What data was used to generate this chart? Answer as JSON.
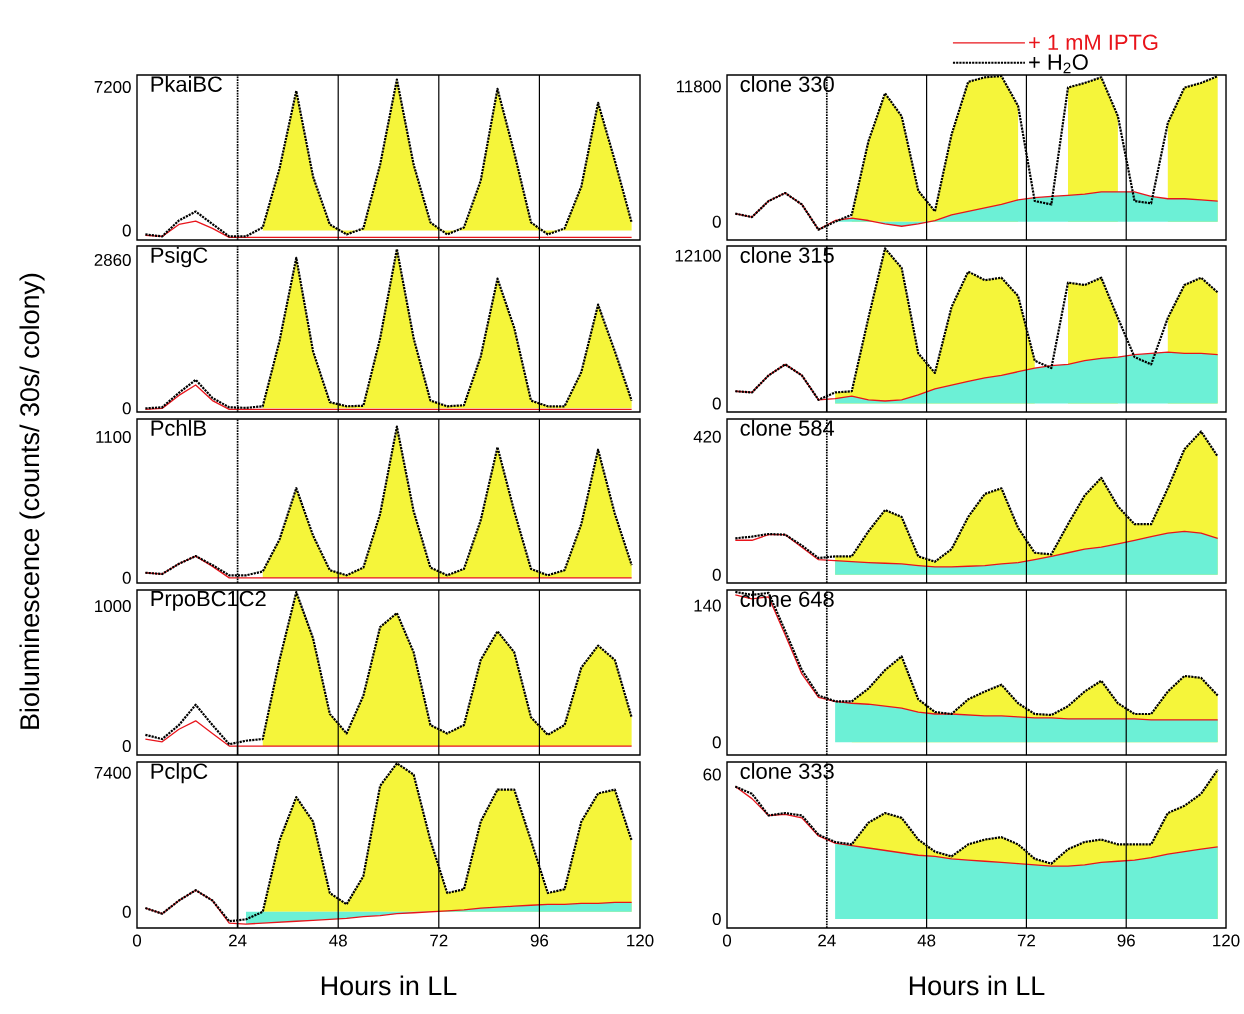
{
  "chart_data": [
    {
      "type": "line",
      "title": "PkaiBC",
      "ylabel": "Bioluminescence (counts/ 30s/ colony)",
      "x": [
        2,
        6,
        10,
        14,
        18,
        22,
        26,
        30,
        34,
        38,
        42,
        46,
        50,
        54,
        58,
        62,
        66,
        70,
        74,
        78,
        82,
        86,
        90,
        94,
        98,
        102,
        106,
        110,
        114,
        118
      ],
      "xlim": [
        0,
        120
      ],
      "xticks": [
        0,
        24,
        48,
        72,
        96,
        120
      ],
      "ylim": [
        -480,
        7800
      ],
      "yticks": [
        0,
        7200
      ],
      "grid": "x",
      "tick_labels": "y",
      "ref_lines": [
        {
          "axis": "x",
          "value": 24,
          "line_style": "dotted"
        }
      ],
      "series": [
        {
          "type": "area",
          "color": "#f5f53a",
          "values": [
            null,
            null,
            null,
            null,
            null,
            null,
            null,
            150,
            3100,
            7000,
            2700,
            300,
            -200,
            100,
            3300,
            7570,
            3300,
            400,
            -200,
            150,
            2500,
            7100,
            3900,
            400,
            -200,
            100,
            2200,
            6400,
            3500,
            400
          ]
        },
        {
          "color": "#000000",
          "line_style": "dotted",
          "values": [
            -200,
            -300,
            500,
            950,
            320,
            -300,
            -300,
            150,
            3100,
            7000,
            2700,
            300,
            -200,
            100,
            3300,
            7570,
            3300,
            400,
            -200,
            150,
            2500,
            7100,
            3900,
            400,
            -200,
            100,
            2200,
            6400,
            3500,
            400
          ]
        },
        {
          "color": "#e8141b",
          "values": [
            -250,
            -300,
            300,
            470,
            100,
            -350,
            -350,
            -350,
            -350,
            -350,
            -350,
            -350,
            -350,
            -350,
            -350,
            -350,
            -350,
            -350,
            -350,
            -350,
            -350,
            -350,
            -350,
            -350,
            -350,
            -350,
            -350,
            -350,
            -350,
            -350
          ]
        }
      ]
    },
    {
      "type": "line",
      "title": "clone 330",
      "x": [
        2,
        6,
        10,
        14,
        18,
        22,
        26,
        30,
        34,
        38,
        42,
        46,
        50,
        54,
        58,
        62,
        66,
        70,
        74,
        78,
        82,
        86,
        90,
        94,
        98,
        102,
        106,
        110,
        114,
        118
      ],
      "xlim": [
        0,
        120
      ],
      "xticks": [
        0,
        24,
        48,
        72,
        96,
        120
      ],
      "ylim": [
        -1600,
        12800
      ],
      "yticks": [
        0,
        11800
      ],
      "grid": "x",
      "tick_labels": "y",
      "legend": "top right",
      "ref_lines": [
        {
          "axis": "x",
          "value": 24,
          "line_style": "dotted"
        }
      ],
      "series": [
        {
          "type": "area",
          "color": "#f5f53a",
          "values": [
            null,
            null,
            null,
            null,
            null,
            null,
            null,
            600,
            7000,
            11200,
            9200,
            2700,
            900,
            7600,
            12200,
            12600,
            12700,
            10100,
            null,
            null,
            11700,
            12100,
            12600,
            9200,
            null,
            null,
            8600,
            11700,
            12100,
            12700
          ]
        },
        {
          "type": "area",
          "color": "#6cf0d6",
          "values": [
            null,
            null,
            null,
            null,
            null,
            null,
            100,
            300,
            100,
            -200,
            -400,
            -200,
            100,
            600,
            900,
            1200,
            1500,
            1900,
            2100,
            2200,
            2300,
            2400,
            2600,
            2600,
            2600,
            2200,
            2000,
            2000,
            1900,
            1800
          ]
        },
        {
          "name": "+ H$_{2}$O",
          "color": "#000000",
          "line_style": "dotted",
          "values": [
            700,
            400,
            1800,
            2500,
            1500,
            -700,
            0,
            600,
            7000,
            11200,
            9200,
            2700,
            900,
            7600,
            12200,
            12600,
            12700,
            10100,
            1800,
            1500,
            11700,
            12100,
            12600,
            9200,
            1800,
            1600,
            8600,
            11700,
            12100,
            12700
          ]
        },
        {
          "name": "+ 1 mM IPTG",
          "color": "#e8141b",
          "values": [
            700,
            400,
            1800,
            2500,
            1500,
            -700,
            100,
            300,
            100,
            -200,
            -400,
            -200,
            100,
            600,
            900,
            1200,
            1500,
            1900,
            2100,
            2200,
            2300,
            2400,
            2600,
            2600,
            2600,
            2200,
            2000,
            2000,
            1900,
            1800
          ]
        }
      ]
    },
    {
      "type": "line",
      "title": "PsigC",
      "x": [
        2,
        6,
        10,
        14,
        18,
        22,
        26,
        30,
        34,
        38,
        42,
        46,
        50,
        54,
        58,
        62,
        66,
        70,
        74,
        78,
        82,
        86,
        90,
        94,
        98,
        102,
        106,
        110,
        114,
        118
      ],
      "xlim": [
        0,
        120
      ],
      "xticks": [
        0,
        24,
        48,
        72,
        96,
        120
      ],
      "ylim": [
        -70,
        3130
      ],
      "yticks": [
        0,
        2860
      ],
      "grid": "x",
      "tick_labels": "y",
      "ref_lines": [
        {
          "axis": "x",
          "value": 24,
          "line_style": "dotted"
        }
      ],
      "series": [
        {
          "type": "area",
          "color": "#f5f53a",
          "values": [
            null,
            null,
            null,
            null,
            null,
            null,
            null,
            40,
            1300,
            2900,
            1100,
            120,
            40,
            50,
            1350,
            3070,
            1350,
            150,
            40,
            60,
            1000,
            2500,
            1550,
            150,
            40,
            40,
            700,
            2000,
            1100,
            150
          ]
        },
        {
          "color": "#000000",
          "line_style": "dotted",
          "values": [
            0,
            20,
            300,
            550,
            200,
            20,
            10,
            40,
            1300,
            2900,
            1100,
            120,
            40,
            50,
            1350,
            3070,
            1350,
            150,
            40,
            60,
            1000,
            2500,
            1550,
            150,
            40,
            40,
            700,
            2000,
            1100,
            150
          ]
        },
        {
          "color": "#e8141b",
          "values": [
            -20,
            0,
            250,
            450,
            150,
            -20,
            -20,
            -20,
            -20,
            -20,
            -20,
            -20,
            -20,
            -20,
            -20,
            -20,
            -20,
            -20,
            -20,
            -20,
            -20,
            -20,
            -20,
            -20,
            -20,
            -20,
            -20,
            -20,
            -20,
            -20
          ]
        }
      ]
    },
    {
      "type": "line",
      "title": "clone 315",
      "x": [
        2,
        6,
        10,
        14,
        18,
        22,
        26,
        30,
        34,
        38,
        42,
        46,
        50,
        54,
        58,
        62,
        66,
        70,
        74,
        78,
        82,
        86,
        90,
        94,
        98,
        102,
        106,
        110,
        114,
        118
      ],
      "xlim": [
        0,
        120
      ],
      "xticks": [
        0,
        24,
        48,
        72,
        96,
        120
      ],
      "ylim": [
        -700,
        12900
      ],
      "yticks": [
        0,
        12100
      ],
      "grid": "x",
      "tick_labels": "y",
      "ref_lines": [
        {
          "axis": "x",
          "value": 24,
          "line_style": "solid"
        }
      ],
      "series": [
        {
          "type": "area",
          "color": "#f5f53a",
          "values": [
            null,
            null,
            null,
            null,
            null,
            null,
            900,
            1000,
            7000,
            12700,
            11100,
            4100,
            2500,
            7900,
            10800,
            10100,
            10300,
            8800,
            3500,
            null,
            9900,
            9700,
            10300,
            7000,
            null,
            null,
            7000,
            9700,
            10300,
            9100
          ]
        },
        {
          "type": "area",
          "color": "#6cf0d6",
          "values": [
            null,
            null,
            null,
            null,
            null,
            null,
            400,
            600,
            300,
            200,
            300,
            700,
            1200,
            1500,
            1800,
            2100,
            2300,
            2600,
            2900,
            3100,
            3200,
            3500,
            3700,
            3800,
            4000,
            4100,
            4200,
            4100,
            4100,
            4000
          ]
        },
        {
          "color": "#000000",
          "line_style": "dotted",
          "values": [
            1000,
            900,
            2300,
            3200,
            2300,
            300,
            900,
            1000,
            7000,
            12700,
            11100,
            4100,
            2500,
            7900,
            10800,
            10100,
            10300,
            8800,
            3500,
            2900,
            9900,
            9700,
            10300,
            7000,
            3800,
            3200,
            7000,
            9700,
            10300,
            9100
          ]
        },
        {
          "color": "#e8141b",
          "values": [
            1000,
            900,
            2300,
            3200,
            2300,
            300,
            400,
            600,
            300,
            200,
            300,
            700,
            1200,
            1500,
            1800,
            2100,
            2300,
            2600,
            2900,
            3100,
            3200,
            3500,
            3700,
            3800,
            4000,
            4100,
            4200,
            4100,
            4100,
            4000
          ]
        }
      ]
    },
    {
      "type": "line",
      "title": "PchlB",
      "x": [
        2,
        6,
        10,
        14,
        18,
        22,
        26,
        30,
        34,
        38,
        42,
        46,
        50,
        54,
        58,
        62,
        66,
        70,
        74,
        78,
        82,
        86,
        90,
        94,
        98,
        102,
        106,
        110,
        114,
        118
      ],
      "xlim": [
        0,
        120
      ],
      "xticks": [
        0,
        24,
        48,
        72,
        96,
        120
      ],
      "ylim": [
        -40,
        1240
      ],
      "yticks": [
        0,
        1100
      ],
      "grid": "x",
      "tick_labels": "y",
      "ref_lines": [
        {
          "axis": "x",
          "value": 24,
          "line_style": "dotted"
        }
      ],
      "series": [
        {
          "type": "area",
          "color": "#f5f53a",
          "values": [
            null,
            null,
            null,
            null,
            null,
            null,
            null,
            50,
            300,
            700,
            330,
            60,
            20,
            80,
            500,
            1180,
            520,
            80,
            20,
            70,
            450,
            1020,
            520,
            70,
            20,
            60,
            420,
            1000,
            500,
            100
          ]
        },
        {
          "color": "#000000",
          "line_style": "dotted",
          "values": [
            40,
            30,
            110,
            170,
            100,
            20,
            20,
            50,
            300,
            700,
            330,
            60,
            20,
            80,
            500,
            1180,
            520,
            80,
            20,
            70,
            450,
            1020,
            520,
            70,
            20,
            60,
            420,
            1000,
            500,
            100
          ]
        },
        {
          "color": "#e8141b",
          "values": [
            40,
            30,
            110,
            170,
            90,
            0,
            0,
            0,
            0,
            0,
            0,
            0,
            0,
            0,
            0,
            0,
            0,
            0,
            0,
            0,
            0,
            0,
            0,
            0,
            0,
            0,
            0,
            0,
            0,
            0
          ]
        }
      ]
    },
    {
      "type": "line",
      "title": "clone 584",
      "x": [
        2,
        6,
        10,
        14,
        18,
        22,
        26,
        30,
        34,
        38,
        42,
        46,
        50,
        54,
        58,
        62,
        66,
        70,
        74,
        78,
        82,
        86,
        90,
        94,
        98,
        102,
        106,
        110,
        114,
        118
      ],
      "xlim": [
        0,
        120
      ],
      "xticks": [
        0,
        24,
        48,
        72,
        96,
        120
      ],
      "ylim": [
        -25,
        474
      ],
      "yticks": [
        0,
        420
      ],
      "grid": "x",
      "tick_labels": "y",
      "ref_lines": [
        {
          "axis": "x",
          "value": 24,
          "line_style": "dotted"
        }
      ],
      "series": [
        {
          "type": "area",
          "color": "#f5f53a",
          "values": [
            null,
            null,
            null,
            null,
            null,
            null,
            56,
            56,
            132,
            197,
            176,
            56,
            40,
            78,
            176,
            246,
            263,
            143,
            67,
            62,
            154,
            241,
            295,
            208,
            154,
            154,
            263,
            382,
            436,
            360
          ]
        },
        {
          "type": "area",
          "color": "#6cf0d6",
          "values": [
            null,
            null,
            null,
            null,
            null,
            null,
            43,
            40,
            37,
            35,
            33,
            28,
            24,
            24,
            26,
            28,
            33,
            37,
            46,
            56,
            67,
            78,
            84,
            94,
            105,
            116,
            127,
            132,
            127,
            111
          ]
        },
        {
          "color": "#000000",
          "line_style": "dotted",
          "values": [
            111,
            116,
            124,
            122,
            89,
            51,
            56,
            56,
            132,
            197,
            176,
            56,
            40,
            78,
            176,
            246,
            263,
            143,
            67,
            62,
            154,
            241,
            295,
            208,
            154,
            154,
            263,
            382,
            436,
            360
          ]
        },
        {
          "color": "#e8141b",
          "values": [
            105,
            105,
            122,
            122,
            84,
            46,
            43,
            40,
            37,
            35,
            33,
            28,
            24,
            24,
            26,
            28,
            33,
            37,
            46,
            56,
            67,
            78,
            84,
            94,
            105,
            116,
            127,
            132,
            127,
            111
          ]
        }
      ]
    },
    {
      "type": "line",
      "title": "PrpoBC1C2",
      "x": [
        2,
        6,
        10,
        14,
        18,
        22,
        26,
        30,
        34,
        38,
        42,
        46,
        50,
        54,
        58,
        62,
        66,
        70,
        74,
        78,
        82,
        86,
        90,
        94,
        98,
        102,
        106,
        110,
        114,
        118
      ],
      "xlim": [
        0,
        120
      ],
      "xticks": [
        0,
        24,
        48,
        72,
        96,
        120
      ],
      "ylim": [
        -64,
        1115
      ],
      "yticks": [
        0,
        1000
      ],
      "grid": "x",
      "tick_labels": "y",
      "ref_lines": [
        {
          "axis": "x",
          "value": 24,
          "line_style": "solid"
        }
      ],
      "series": [
        {
          "type": "area",
          "color": "#f5f53a",
          "values": [
            null,
            null,
            null,
            null,
            null,
            null,
            null,
            50,
            615,
            1100,
            770,
            230,
            90,
            360,
            850,
            950,
            670,
            150,
            90,
            150,
            615,
            820,
            670,
            205,
            80,
            150,
            560,
            718,
            615,
            205
          ]
        },
        {
          "color": "#000000",
          "line_style": "dotted",
          "values": [
            80,
            50,
            150,
            295,
            150,
            13,
            38,
            50,
            615,
            1100,
            770,
            230,
            90,
            360,
            850,
            950,
            670,
            150,
            90,
            150,
            615,
            820,
            670,
            205,
            80,
            150,
            560,
            718,
            615,
            205
          ]
        },
        {
          "color": "#e8141b",
          "values": [
            50,
            30,
            120,
            180,
            90,
            0,
            0,
            0,
            0,
            0,
            0,
            0,
            0,
            0,
            0,
            0,
            0,
            0,
            0,
            0,
            0,
            0,
            0,
            0,
            0,
            0,
            0,
            0,
            0,
            0
          ]
        }
      ]
    },
    {
      "type": "line",
      "title": "clone 648",
      "x": [
        2,
        6,
        10,
        14,
        18,
        22,
        26,
        30,
        34,
        38,
        42,
        46,
        50,
        54,
        58,
        62,
        66,
        70,
        74,
        78,
        82,
        86,
        90,
        94,
        98,
        102,
        106,
        110,
        114,
        118
      ],
      "xlim": [
        0,
        120
      ],
      "xticks": [
        0,
        24,
        48,
        72,
        96,
        120
      ],
      "ylim": [
        -13,
        156
      ],
      "yticks": [
        0,
        140
      ],
      "grid": "x",
      "tick_labels": "y",
      "ref_lines": [
        {
          "axis": "x",
          "value": 24,
          "line_style": "dotted"
        }
      ],
      "series": [
        {
          "type": "area",
          "color": "#f5f53a",
          "values": [
            null,
            null,
            null,
            null,
            null,
            null,
            null,
            42,
            55,
            74,
            88,
            44,
            31,
            29,
            44,
            52,
            59,
            40,
            29,
            28,
            37,
            52,
            63,
            40,
            29,
            29,
            52,
            68,
            66,
            48
          ]
        },
        {
          "type": "area",
          "color": "#6cf0d6",
          "values": [
            null,
            null,
            null,
            null,
            null,
            null,
            42,
            40,
            39,
            37,
            35,
            31,
            29,
            29,
            28,
            27,
            27,
            26,
            25,
            25,
            24,
            24,
            24,
            24,
            24,
            23,
            23,
            23,
            23,
            23
          ]
        },
        {
          "color": "#000000",
          "line_style": "dotted",
          "values": [
            154,
            151,
            153,
            114,
            74,
            48,
            42,
            42,
            55,
            74,
            88,
            44,
            31,
            29,
            44,
            52,
            59,
            40,
            29,
            28,
            37,
            52,
            63,
            40,
            29,
            29,
            52,
            68,
            66,
            48
          ]
        },
        {
          "color": "#e8141b",
          "values": [
            151,
            147,
            149,
            110,
            70,
            46,
            42,
            40,
            39,
            37,
            35,
            31,
            29,
            29,
            28,
            27,
            27,
            26,
            25,
            25,
            24,
            24,
            24,
            24,
            24,
            23,
            23,
            23,
            23,
            23
          ]
        }
      ]
    },
    {
      "type": "line",
      "title": "PclpC",
      "xlabel": "Hours in LL",
      "x": [
        2,
        6,
        10,
        14,
        18,
        22,
        26,
        30,
        34,
        38,
        42,
        46,
        50,
        54,
        58,
        62,
        66,
        70,
        74,
        78,
        82,
        86,
        90,
        94,
        98,
        102,
        106,
        110,
        114,
        118
      ],
      "xlim": [
        0,
        120
      ],
      "xticks": [
        0,
        24,
        48,
        72,
        96,
        120
      ],
      "ylim": [
        -860,
        7970
      ],
      "yticks": [
        0,
        7400
      ],
      "grid": "x",
      "ref_lines": [
        {
          "axis": "x",
          "value": 24,
          "line_style": "solid"
        }
      ],
      "series": [
        {
          "type": "area",
          "color": "#f5f53a",
          "values": [
            null,
            null,
            null,
            null,
            null,
            null,
            null,
            0,
            3800,
            6100,
            4800,
            1000,
            400,
            1900,
            6700,
            7900,
            7300,
            3800,
            1000,
            1200,
            4800,
            6500,
            6500,
            3800,
            1000,
            1200,
            4800,
            6300,
            6500,
            3800
          ]
        },
        {
          "type": "area",
          "color": "#6cf0d6",
          "values": [
            null,
            null,
            null,
            null,
            null,
            null,
            -650,
            -600,
            -550,
            -500,
            -450,
            -400,
            -350,
            -250,
            -200,
            -100,
            -50,
            0,
            50,
            100,
            200,
            250,
            300,
            350,
            400,
            400,
            450,
            450,
            500,
            500
          ]
        },
        {
          "color": "#000000",
          "line_style": "dotted",
          "values": [
            200,
            -100,
            600,
            1150,
            600,
            -500,
            -400,
            0,
            3800,
            6100,
            4800,
            1000,
            400,
            1900,
            6700,
            7900,
            7300,
            3800,
            1000,
            1200,
            4800,
            6500,
            6500,
            3800,
            1000,
            1200,
            4800,
            6300,
            6500,
            3800
          ]
        },
        {
          "color": "#e8141b",
          "values": [
            200,
            -100,
            600,
            1150,
            600,
            -600,
            -650,
            -600,
            -550,
            -500,
            -450,
            -400,
            -350,
            -250,
            -200,
            -100,
            -50,
            0,
            50,
            100,
            200,
            250,
            300,
            350,
            400,
            400,
            450,
            450,
            500,
            500
          ]
        }
      ]
    },
    {
      "type": "line",
      "title": "clone 333",
      "xlabel": "Hours in LL",
      "x": [
        2,
        6,
        10,
        14,
        18,
        22,
        26,
        30,
        34,
        38,
        42,
        46,
        50,
        54,
        58,
        62,
        66,
        70,
        74,
        78,
        82,
        86,
        90,
        94,
        98,
        102,
        106,
        110,
        114,
        118
      ],
      "xlim": [
        0,
        120
      ],
      "xticks": [
        0,
        24,
        48,
        72,
        96,
        120
      ],
      "ylim": [
        -3.7,
        65.2
      ],
      "yticks": [
        0,
        60
      ],
      "grid": "x",
      "ref_lines": [
        {
          "axis": "x",
          "value": 24,
          "line_style": "dotted"
        }
      ],
      "series": [
        {
          "type": "area",
          "color": "#f5f53a",
          "values": [
            null,
            null,
            null,
            null,
            null,
            null,
            null,
            31,
            40,
            44,
            42,
            33,
            28,
            26,
            31,
            33,
            34,
            31,
            25,
            23,
            29,
            32,
            33,
            31,
            31,
            31,
            44,
            47,
            52,
            62
          ]
        },
        {
          "type": "area",
          "color": "#6cf0d6",
          "values": [
            null,
            null,
            null,
            null,
            null,
            null,
            31.5,
            30.5,
            29.5,
            28.5,
            27.5,
            26.5,
            26,
            25,
            24.5,
            24,
            23.5,
            23,
            22.5,
            22,
            22,
            22.5,
            23.5,
            24,
            24.5,
            25.5,
            27,
            28,
            29,
            30
          ]
        },
        {
          "color": "#000000",
          "line_style": "dotted",
          "values": [
            55,
            52,
            43,
            44,
            43,
            35,
            32,
            31,
            40,
            44,
            42,
            33,
            28,
            26,
            31,
            33,
            34,
            31,
            25,
            23,
            29,
            32,
            33,
            31,
            31,
            31,
            44,
            47,
            52,
            62
          ]
        },
        {
          "color": "#e8141b",
          "values": [
            55,
            50,
            43,
            43.5,
            42,
            34.5,
            31.5,
            30.5,
            29.5,
            28.5,
            27.5,
            26.5,
            26,
            25,
            24.5,
            24,
            23.5,
            23,
            22.5,
            22,
            22,
            22.5,
            23.5,
            24,
            24.5,
            25.5,
            27,
            28,
            29,
            30
          ]
        }
      ]
    }
  ]
}
